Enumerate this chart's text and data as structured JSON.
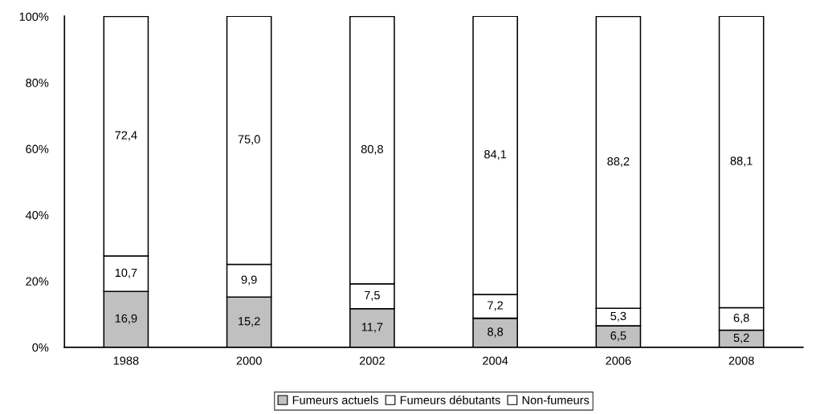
{
  "chart_data": {
    "type": "bar",
    "stacked": true,
    "categories": [
      "1988",
      "2000",
      "2002",
      "2004",
      "2006",
      "2008"
    ],
    "series": [
      {
        "name": "Fumeurs actuels",
        "color": "#c0c0c0",
        "values": [
          16.9,
          15.2,
          11.7,
          8.8,
          6.5,
          5.2
        ],
        "value_labels": [
          "16,9",
          "15,2",
          "11,7",
          "8,8",
          "6,5",
          "5,2"
        ]
      },
      {
        "name": "Fumeurs débutants",
        "color": "#ffffff",
        "values": [
          10.7,
          9.9,
          7.5,
          7.2,
          5.3,
          6.8
        ],
        "value_labels": [
          "10,7",
          "9,9",
          "7,5",
          "7,2",
          "5,3",
          "6,8"
        ]
      },
      {
        "name": "Non-fumeurs",
        "color": "#ffffff",
        "values": [
          72.4,
          75.0,
          80.8,
          84.1,
          88.2,
          88.1
        ],
        "value_labels": [
          "72,4",
          "75,0",
          "80,8",
          "84,1",
          "88,2",
          "88,1"
        ]
      }
    ],
    "ylim": [
      0,
      100.1
    ],
    "yticks": [
      {
        "value": 0,
        "label": "0%"
      },
      {
        "value": 20,
        "label": "20%"
      },
      {
        "value": 40,
        "label": "40%"
      },
      {
        "value": 60,
        "label": "60%"
      },
      {
        "value": 80,
        "label": "80%"
      },
      {
        "value": 100,
        "label": "100%"
      }
    ],
    "grid": false,
    "legend": "bottom"
  }
}
